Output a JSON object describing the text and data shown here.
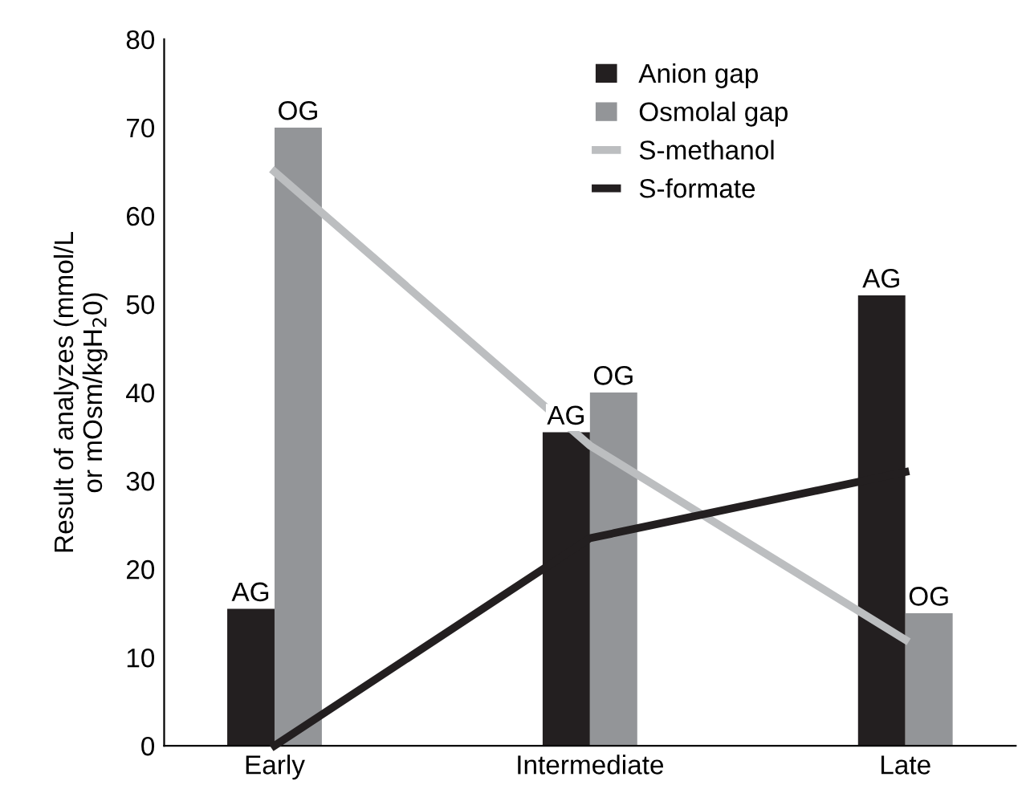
{
  "chart_data": {
    "type": "bar",
    "categories": [
      "Early",
      "Intermediate",
      "Late"
    ],
    "ylabel": "Result of analyzes (mmol/L\nor mOsm/kgH$_{2}$0)",
    "ylim": [
      0,
      80
    ],
    "yticks": [
      0,
      10,
      20,
      30,
      40,
      50,
      60,
      70,
      80
    ],
    "grid": false,
    "legend": "top",
    "series": [
      {
        "name": "Anion gap",
        "color": "#231f20",
        "values": [
          15.5,
          35.5,
          51
        ],
        "value_labels": [
          "AG",
          "AG",
          "AG"
        ]
      },
      {
        "name": "Osmolal gap",
        "color": "#939598",
        "values": [
          70,
          40,
          15
        ],
        "value_labels": [
          "OG",
          "OG",
          "OG"
        ]
      },
      {
        "name": "S-methanol",
        "type": "line",
        "color": "#bcbec0",
        "values": [
          65,
          34,
          12
        ]
      },
      {
        "name": "S-formate",
        "type": "line",
        "color": "#231f20",
        "values": [
          0,
          23.5,
          31
        ]
      }
    ]
  }
}
